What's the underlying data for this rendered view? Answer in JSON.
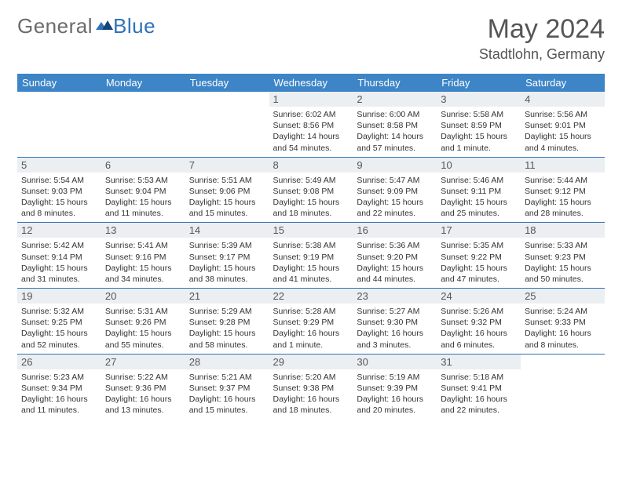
{
  "logo": {
    "text1": "General",
    "text2": "Blue"
  },
  "header": {
    "month": "May 2024",
    "location": "Stadtlohn, Germany"
  },
  "colors": {
    "header_bg": "#3d85c6",
    "header_text": "#ffffff",
    "border": "#2f72b8",
    "daynum_bg": "#eceff1",
    "text": "#333333",
    "title": "#555555"
  },
  "weekdays": [
    "Sunday",
    "Monday",
    "Tuesday",
    "Wednesday",
    "Thursday",
    "Friday",
    "Saturday"
  ],
  "grid": [
    [
      null,
      null,
      null,
      {
        "n": "1",
        "sr": "6:02 AM",
        "ss": "8:56 PM",
        "dl": "14 hours and 54 minutes."
      },
      {
        "n": "2",
        "sr": "6:00 AM",
        "ss": "8:58 PM",
        "dl": "14 hours and 57 minutes."
      },
      {
        "n": "3",
        "sr": "5:58 AM",
        "ss": "8:59 PM",
        "dl": "15 hours and 1 minute."
      },
      {
        "n": "4",
        "sr": "5:56 AM",
        "ss": "9:01 PM",
        "dl": "15 hours and 4 minutes."
      }
    ],
    [
      {
        "n": "5",
        "sr": "5:54 AM",
        "ss": "9:03 PM",
        "dl": "15 hours and 8 minutes."
      },
      {
        "n": "6",
        "sr": "5:53 AM",
        "ss": "9:04 PM",
        "dl": "15 hours and 11 minutes."
      },
      {
        "n": "7",
        "sr": "5:51 AM",
        "ss": "9:06 PM",
        "dl": "15 hours and 15 minutes."
      },
      {
        "n": "8",
        "sr": "5:49 AM",
        "ss": "9:08 PM",
        "dl": "15 hours and 18 minutes."
      },
      {
        "n": "9",
        "sr": "5:47 AM",
        "ss": "9:09 PM",
        "dl": "15 hours and 22 minutes."
      },
      {
        "n": "10",
        "sr": "5:46 AM",
        "ss": "9:11 PM",
        "dl": "15 hours and 25 minutes."
      },
      {
        "n": "11",
        "sr": "5:44 AM",
        "ss": "9:12 PM",
        "dl": "15 hours and 28 minutes."
      }
    ],
    [
      {
        "n": "12",
        "sr": "5:42 AM",
        "ss": "9:14 PM",
        "dl": "15 hours and 31 minutes."
      },
      {
        "n": "13",
        "sr": "5:41 AM",
        "ss": "9:16 PM",
        "dl": "15 hours and 34 minutes."
      },
      {
        "n": "14",
        "sr": "5:39 AM",
        "ss": "9:17 PM",
        "dl": "15 hours and 38 minutes."
      },
      {
        "n": "15",
        "sr": "5:38 AM",
        "ss": "9:19 PM",
        "dl": "15 hours and 41 minutes."
      },
      {
        "n": "16",
        "sr": "5:36 AM",
        "ss": "9:20 PM",
        "dl": "15 hours and 44 minutes."
      },
      {
        "n": "17",
        "sr": "5:35 AM",
        "ss": "9:22 PM",
        "dl": "15 hours and 47 minutes."
      },
      {
        "n": "18",
        "sr": "5:33 AM",
        "ss": "9:23 PM",
        "dl": "15 hours and 50 minutes."
      }
    ],
    [
      {
        "n": "19",
        "sr": "5:32 AM",
        "ss": "9:25 PM",
        "dl": "15 hours and 52 minutes."
      },
      {
        "n": "20",
        "sr": "5:31 AM",
        "ss": "9:26 PM",
        "dl": "15 hours and 55 minutes."
      },
      {
        "n": "21",
        "sr": "5:29 AM",
        "ss": "9:28 PM",
        "dl": "15 hours and 58 minutes."
      },
      {
        "n": "22",
        "sr": "5:28 AM",
        "ss": "9:29 PM",
        "dl": "16 hours and 1 minute."
      },
      {
        "n": "23",
        "sr": "5:27 AM",
        "ss": "9:30 PM",
        "dl": "16 hours and 3 minutes."
      },
      {
        "n": "24",
        "sr": "5:26 AM",
        "ss": "9:32 PM",
        "dl": "16 hours and 6 minutes."
      },
      {
        "n": "25",
        "sr": "5:24 AM",
        "ss": "9:33 PM",
        "dl": "16 hours and 8 minutes."
      }
    ],
    [
      {
        "n": "26",
        "sr": "5:23 AM",
        "ss": "9:34 PM",
        "dl": "16 hours and 11 minutes."
      },
      {
        "n": "27",
        "sr": "5:22 AM",
        "ss": "9:36 PM",
        "dl": "16 hours and 13 minutes."
      },
      {
        "n": "28",
        "sr": "5:21 AM",
        "ss": "9:37 PM",
        "dl": "16 hours and 15 minutes."
      },
      {
        "n": "29",
        "sr": "5:20 AM",
        "ss": "9:38 PM",
        "dl": "16 hours and 18 minutes."
      },
      {
        "n": "30",
        "sr": "5:19 AM",
        "ss": "9:39 PM",
        "dl": "16 hours and 20 minutes."
      },
      {
        "n": "31",
        "sr": "5:18 AM",
        "ss": "9:41 PM",
        "dl": "16 hours and 22 minutes."
      },
      null
    ]
  ],
  "labels": {
    "sunrise": "Sunrise: ",
    "sunset": "Sunset: ",
    "daylight": "Daylight: "
  }
}
